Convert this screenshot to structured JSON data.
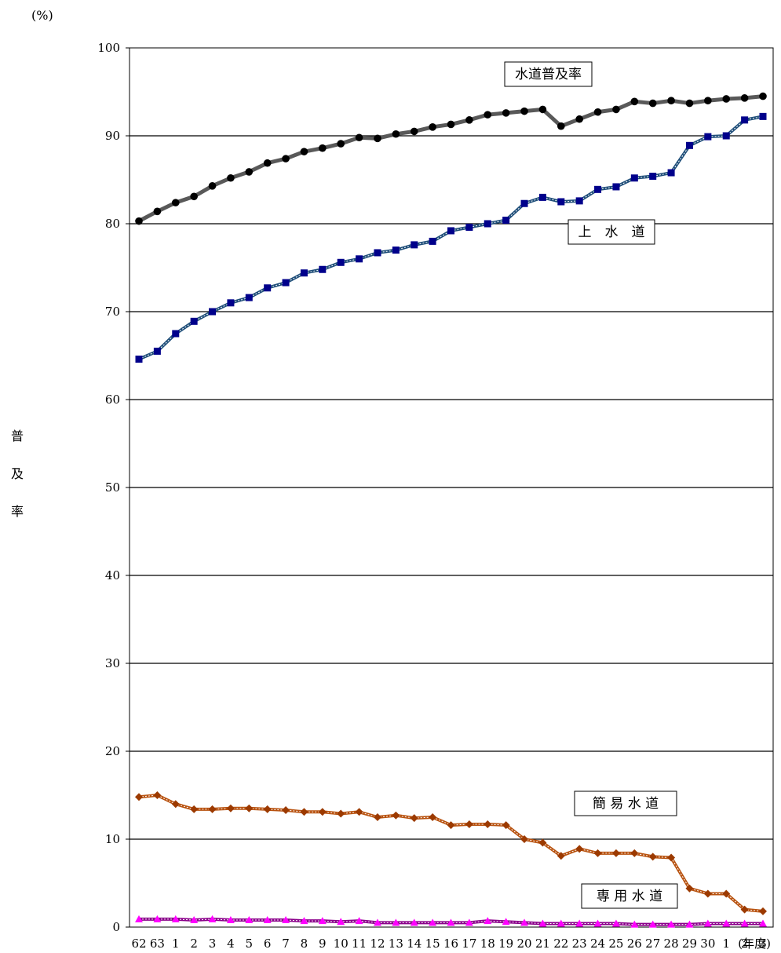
{
  "chart_data": {
    "type": "line",
    "unit_label": "(%)",
    "ylabel": "普及率",
    "xlabel": "(年度)",
    "ylim": [
      0,
      100
    ],
    "yticks": [
      0,
      10,
      20,
      30,
      40,
      50,
      60,
      70,
      80,
      90,
      100
    ],
    "grid": true,
    "categories": [
      "62",
      "63",
      "1",
      "2",
      "3",
      "4",
      "5",
      "6",
      "7",
      "8",
      "9",
      "10",
      "11",
      "12",
      "13",
      "14",
      "15",
      "16",
      "17",
      "18",
      "19",
      "20",
      "21",
      "22",
      "23",
      "24",
      "25",
      "26",
      "27",
      "28",
      "29",
      "30",
      "1",
      "2",
      "3"
    ],
    "series": [
      {
        "name": "水道普及率",
        "color": "#595959",
        "marker": "circle",
        "marker_color": "#000000",
        "values": [
          80.3,
          81.4,
          82.4,
          83.1,
          84.3,
          85.2,
          85.9,
          86.9,
          87.4,
          88.2,
          88.6,
          89.1,
          89.8,
          89.7,
          90.2,
          90.5,
          91.0,
          91.3,
          91.8,
          92.4,
          92.6,
          92.8,
          93.0,
          91.1,
          91.9,
          92.7,
          93.0,
          93.9,
          93.7,
          94.0,
          93.7,
          94.0,
          94.2,
          94.3,
          94.5
        ]
      },
      {
        "name": "上　水　道",
        "color": "#1f4e79",
        "marker": "square",
        "marker_color": "#00008b",
        "values": [
          64.6,
          65.5,
          67.5,
          68.9,
          70.0,
          71.0,
          71.6,
          72.7,
          73.3,
          74.4,
          74.8,
          75.6,
          76.0,
          76.7,
          77.0,
          77.6,
          78.0,
          79.2,
          79.6,
          80.0,
          80.4,
          82.3,
          83.0,
          82.5,
          82.6,
          83.9,
          84.2,
          85.2,
          85.4,
          85.8,
          88.9,
          89.9,
          90.0,
          91.8,
          92.2
        ]
      },
      {
        "name": "簡 易 水 道",
        "color": "#b8520f",
        "marker": "diamond",
        "marker_color": "#9c3a00",
        "values": [
          14.8,
          15.0,
          14.0,
          13.4,
          13.4,
          13.5,
          13.5,
          13.4,
          13.3,
          13.1,
          13.1,
          12.9,
          13.1,
          12.5,
          12.7,
          12.4,
          12.5,
          11.6,
          11.7,
          11.7,
          11.6,
          10.0,
          9.6,
          8.1,
          8.9,
          8.4,
          8.4,
          8.4,
          8.0,
          7.9,
          4.4,
          3.8,
          3.8,
          2.0,
          1.8
        ]
      },
      {
        "name": "専 用 水 道",
        "color": "#8b008b",
        "marker": "triangle",
        "marker_color": "#ff00ff",
        "values": [
          0.9,
          0.9,
          0.9,
          0.8,
          0.9,
          0.8,
          0.8,
          0.8,
          0.8,
          0.7,
          0.7,
          0.6,
          0.7,
          0.5,
          0.5,
          0.5,
          0.5,
          0.5,
          0.5,
          0.7,
          0.6,
          0.5,
          0.4,
          0.4,
          0.4,
          0.4,
          0.4,
          0.3,
          0.3,
          0.3,
          0.3,
          0.4,
          0.4,
          0.4,
          0.4
        ]
      }
    ]
  }
}
